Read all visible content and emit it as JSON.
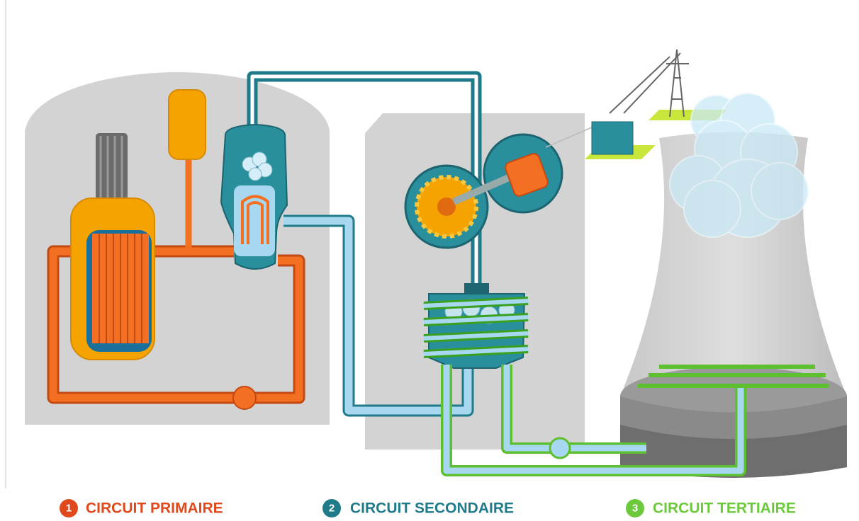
{
  "legend": [
    {
      "number": 1,
      "label": "CIRCUIT PRIMAIRE"
    },
    {
      "number": 2,
      "label": "CIRCUIT SECONDAIRE"
    },
    {
      "number": 3,
      "label": "CIRCUIT TERTIAIRE"
    }
  ]
}
